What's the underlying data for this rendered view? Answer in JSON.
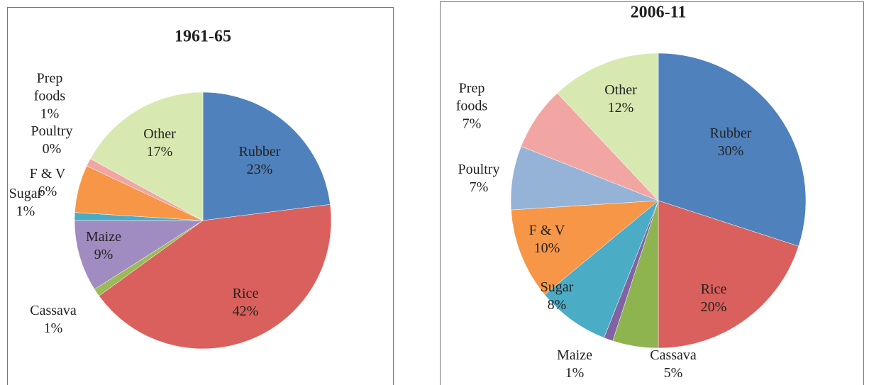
{
  "chart_data": [
    {
      "type": "pie",
      "title": "1961-65",
      "categories": [
        "Rubber",
        "Rice",
        "Cassava",
        "Maize",
        "Sugar",
        "F & V",
        "Poultry",
        "Prep foods",
        "Other"
      ],
      "values": [
        23,
        42,
        1,
        9,
        1,
        6,
        0,
        1,
        17
      ],
      "value_labels": [
        "23%",
        "42%",
        "1%",
        "9%",
        "1%",
        "6%",
        "0%",
        "1%",
        "17%"
      ],
      "colors": [
        "#4f81bd",
        "#d9605c",
        "#9bbb59",
        "#a08cc0",
        "#4bacc6",
        "#f79646",
        "#95b3d7",
        "#f2a6a4",
        "#d7e9b0"
      ]
    },
    {
      "type": "pie",
      "title": "2006-11",
      "categories": [
        "Rubber",
        "Rice",
        "Cassava",
        "Maize",
        "Sugar",
        "F & V",
        "Poultry",
        "Prep foods",
        "Other"
      ],
      "values": [
        30,
        20,
        5,
        1,
        8,
        10,
        7,
        7,
        12
      ],
      "value_labels": [
        "30%",
        "20%",
        "5%",
        "1%",
        "8%",
        "10%",
        "7%",
        "7%",
        "12%"
      ],
      "colors": [
        "#4f81bd",
        "#d9605c",
        "#8db44f",
        "#8064a2",
        "#4bacc6",
        "#f79646",
        "#95b3d7",
        "#f2a6a4",
        "#d7e9b0"
      ]
    }
  ]
}
